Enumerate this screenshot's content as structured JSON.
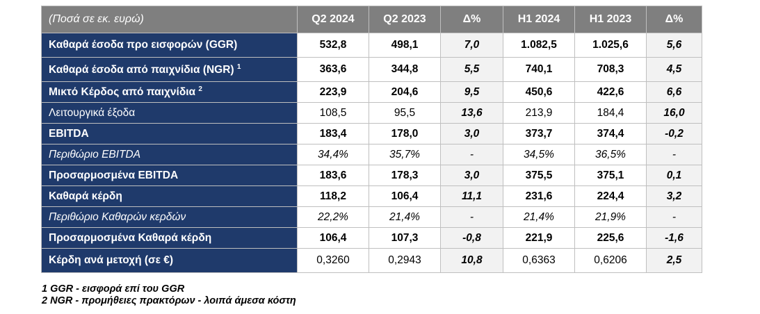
{
  "header": {
    "label": "(Ποσά σε εκ. ευρώ)",
    "cols": [
      "Q2 2024",
      "Q2 2023",
      "Δ%",
      "H1 2024",
      "H1 2023",
      "Δ%"
    ]
  },
  "rows": [
    {
      "label": "Καθαρά έσοδα προ εισφορών (GGR)",
      "sup": "",
      "v": [
        "532,8",
        "498,1",
        "7,0",
        "1.082,5",
        "1.025,6",
        "5,6"
      ]
    },
    {
      "label": "Καθαρά έσοδα από παιχνίδια (NGR)",
      "sup": "1",
      "v": [
        "363,6",
        "344,8",
        "5,5",
        "740,1",
        "708,3",
        "4,5"
      ]
    },
    {
      "label": "Μικτό Κέρδος από παιχνίδια",
      "sup": "2",
      "v": [
        "223,9",
        "204,6",
        "9,5",
        "450,6",
        "422,6",
        "6,6"
      ]
    },
    {
      "label": "Λειτουργικά έξοδα",
      "sup": "",
      "v": [
        "108,5",
        "95,5",
        "13,6",
        "213,9",
        "184,4",
        "16,0"
      ]
    },
    {
      "label": "EBITDA",
      "sup": "",
      "v": [
        "183,4",
        "178,0",
        "3,0",
        "373,7",
        "374,4",
        "-0,2"
      ]
    },
    {
      "label": "Περιθώριο EBITDA",
      "sup": "",
      "v": [
        "34,4%",
        "35,7%",
        "-",
        "34,5%",
        "36,5%",
        "-"
      ]
    },
    {
      "label": "Προσαρμοσμένα EBITDA",
      "sup": "",
      "v": [
        "183,6",
        "178,3",
        "3,0",
        "375,5",
        "375,1",
        "0,1"
      ]
    },
    {
      "label": "Καθαρά κέρδη",
      "sup": "",
      "v": [
        "118,2",
        "106,4",
        "11,1",
        "231,6",
        "224,4",
        "3,2"
      ]
    },
    {
      "label": "Περιθώριο Καθαρών κερδών",
      "sup": "",
      "v": [
        "22,2%",
        "21,4%",
        "-",
        "21,4%",
        "21,9%",
        "-"
      ]
    },
    {
      "label": "Προσαρμοσμένα Καθαρά κέρδη",
      "sup": "",
      "v": [
        "106,4",
        "107,3",
        "-0,8",
        "221,9",
        "225,6",
        "-1,6"
      ]
    },
    {
      "label": "Κέρδη ανά μετοχή (σε €)",
      "sup": "",
      "v": [
        "0,3260",
        "0,2943",
        "10,8",
        "0,6363",
        "0,6206",
        "2,5"
      ]
    }
  ],
  "notes": [
    "1 GGR - εισφορά επί του GGR",
    "2 NGR - προμήθειες πρακτόρων - λοιπά άμεσα κόστη"
  ]
}
